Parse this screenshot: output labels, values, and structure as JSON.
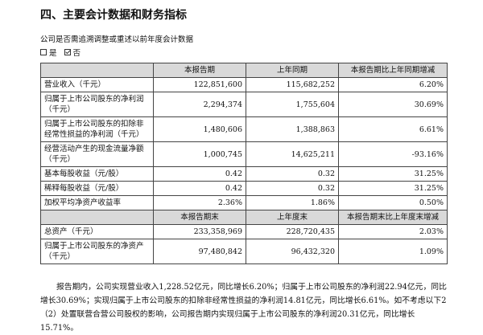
{
  "header": {
    "title": "四、主要会计数据和财务指标",
    "question": "公司是否需追溯调整或重述以前年度会计数据",
    "options": [
      "是",
      "否"
    ]
  },
  "table": {
    "header1": [
      "本报告期",
      "上年同期",
      "本报告期比上年同期增减"
    ],
    "rows1": [
      [
        "营业收入（千元）",
        "122,851,600",
        "115,682,252",
        "6.20%"
      ],
      [
        "归属于上市公司股东的净利润（千元）",
        "2,294,374",
        "1,755,604",
        "30.69%"
      ],
      [
        "归属于上市公司股东的扣除非经常性损益的净利润（千元）",
        "1,480,606",
        "1,388,863",
        "6.61%"
      ],
      [
        "经营活动产生的现金流量净额（千元）",
        "1,000,745",
        "14,625,211",
        "-93.16%"
      ],
      [
        "基本每股收益（元/股）",
        "0.42",
        "0.32",
        "31.25%"
      ],
      [
        "稀释每股收益（元/股）",
        "0.42",
        "0.32",
        "31.25%"
      ],
      [
        "加权平均净资产收益率",
        "2.36%",
        "1.86%",
        "0.50%"
      ]
    ],
    "header2": [
      "本报告期末",
      "上年度末",
      "本报告期末比上年度末增减"
    ],
    "rows2": [
      [
        "总资产（千元）",
        "233,358,969",
        "228,720,435",
        "2.03%"
      ],
      [
        "归属于上市公司股东的净资产（千元）",
        "97,480,842",
        "96,432,320",
        "1.09%"
      ]
    ]
  },
  "paragraph": "报告期内，公司实现营业收入1,228.52亿元，同比增长6.20%；归属于上市公司股东的净利润22.94亿元，同比增长30.69%；实现归属于上市公司股东的扣除非经常性损益的净利润14.81亿元，同比增长6.61%。如不考虑以下2（2）处置联营合营公司股权的影响，公司报告期内实现归属于上市公司股东的净利润20.31亿元，同比增长15.71%。"
}
